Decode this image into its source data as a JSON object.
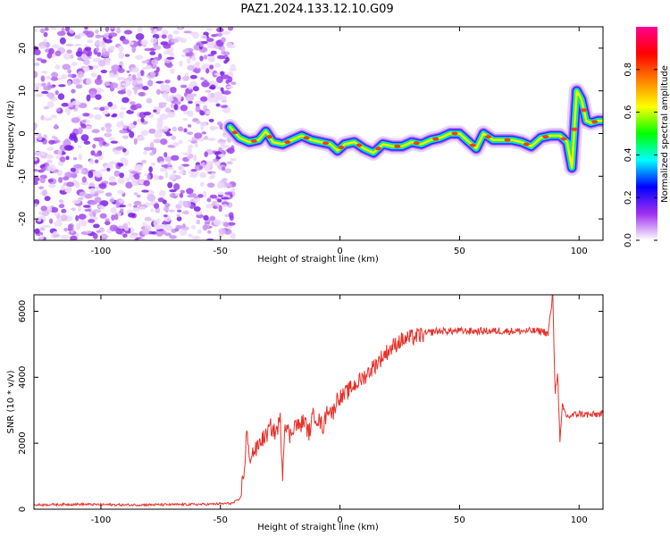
{
  "title": "PAZ1.2024.133.12.10.G09",
  "colors": {
    "line": "#e8302a",
    "axis": "#000000",
    "background": "#ffffff"
  },
  "chart_data": [
    {
      "type": "heatmap",
      "xlabel": "Height of straight line (km)",
      "ylabel": "Frequency (Hz)",
      "xlim": [
        -128,
        110
      ],
      "ylim": [
        -25,
        25
      ],
      "xticks": [
        -100,
        -50,
        0,
        50,
        100
      ],
      "yticks": [
        -20,
        -10,
        0,
        10,
        20
      ],
      "xtick_labels": [
        "-100",
        "-50",
        "0",
        "50",
        "100"
      ],
      "ytick_labels": [
        "-20",
        "-10",
        "0",
        "10",
        "20"
      ],
      "noise_region_x": [
        -128,
        -46
      ],
      "ridge": {
        "x": [
          -46,
          -42,
          -38,
          -34,
          -31,
          -28,
          -24,
          -20,
          -16,
          -12,
          -8,
          -4,
          -1,
          2,
          6,
          10,
          14,
          18,
          22,
          26,
          30,
          34,
          38,
          42,
          46,
          50,
          54,
          57,
          60,
          64,
          68,
          72,
          76,
          80,
          84,
          88,
          92,
          95,
          97,
          99,
          101,
          103,
          105,
          108,
          110
        ],
        "y": [
          1.5,
          -1.0,
          -2.0,
          -1.5,
          0.5,
          -2.0,
          -2.5,
          -1.5,
          -0.5,
          -1.5,
          -2.0,
          -2.5,
          -4.0,
          -2.5,
          -2.0,
          -3.5,
          -4.5,
          -2.5,
          -3.0,
          -3.0,
          -2.0,
          -2.5,
          -1.5,
          -1.0,
          0.0,
          0.0,
          -2.0,
          -3.5,
          0.0,
          -1.5,
          -1.5,
          -1.5,
          -2.0,
          -3.0,
          -1.0,
          -0.5,
          -0.5,
          -2.0,
          -8.0,
          10.0,
          8.0,
          3.0,
          2.5,
          3.0,
          3.0
        ]
      },
      "colorbar": {
        "label": "Normalized spectral amplitude",
        "range": [
          0.0,
          1.0
        ],
        "ticks": [
          0.0,
          0.2,
          0.4,
          0.6,
          0.8
        ],
        "tick_labels": [
          "0.0",
          "0.2",
          "0.4",
          "0.6",
          "0.8"
        ],
        "colors": [
          "#ffffff",
          "#a12ff0",
          "#0000ff",
          "#00ffff",
          "#00ff00",
          "#ffff00",
          "#ff8000",
          "#ff0000",
          "#ff0090"
        ]
      }
    },
    {
      "type": "line",
      "xlabel": "Height of straight line (km)",
      "ylabel": "SNR (10 * v/v)",
      "xlim": [
        -128,
        110
      ],
      "ylim": [
        0,
        6500
      ],
      "xticks": [
        -100,
        -50,
        0,
        50,
        100
      ],
      "yticks": [
        0,
        2000,
        4000,
        6000
      ],
      "xtick_labels": [
        "-100",
        "-50",
        "0",
        "50",
        "100"
      ],
      "ytick_labels": [
        "0",
        "2000",
        "4000",
        "6000"
      ],
      "series": [
        {
          "x": [
            -128,
            -110,
            -90,
            -70,
            -55,
            -45,
            -42,
            -40,
            -39,
            -38,
            -37,
            -35,
            -33,
            -31,
            -29,
            -27,
            -25,
            -24,
            -23,
            -21,
            -19,
            -17,
            -15,
            -13,
            -11,
            -9,
            -7,
            -5,
            -3,
            -1,
            1,
            5,
            10,
            15,
            20,
            25,
            30,
            35,
            40,
            45,
            50,
            55,
            60,
            65,
            70,
            75,
            80,
            85,
            87,
            88,
            89,
            90,
            91,
            92,
            93,
            95,
            100,
            105,
            110
          ],
          "y": [
            130,
            150,
            130,
            140,
            150,
            180,
            300,
            1200,
            2400,
            1500,
            1700,
            1800,
            2100,
            2200,
            2500,
            2300,
            2700,
            1100,
            2700,
            2200,
            2600,
            2500,
            2700,
            2300,
            2900,
            2700,
            2500,
            3100,
            2900,
            3400,
            3400,
            3700,
            4000,
            4400,
            4800,
            5100,
            5200,
            5300,
            5400,
            5400,
            5400,
            5400,
            5400,
            5400,
            5400,
            5400,
            5400,
            5400,
            5300,
            5900,
            6500,
            3500,
            4200,
            2000,
            3100,
            2800,
            2900,
            2850,
            2900
          ]
        }
      ]
    }
  ]
}
